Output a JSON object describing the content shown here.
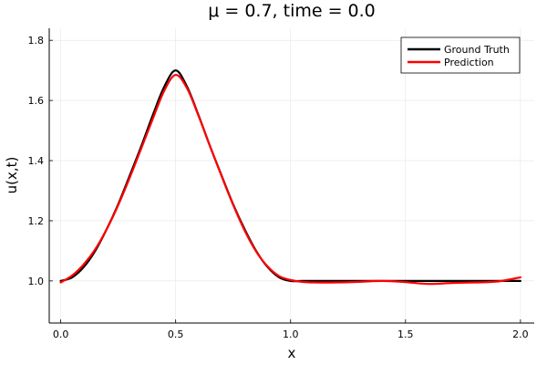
{
  "chart_data": {
    "type": "line",
    "title": "μ = 0.7, time = 0.0",
    "xlabel": "x",
    "ylabel": "u(x,t)",
    "xlim": [
      -0.05,
      2.06
    ],
    "ylim": [
      0.86,
      1.84
    ],
    "xticks": [
      0.0,
      0.5,
      1.0,
      1.5,
      2.0
    ],
    "xtick_labels": [
      "0.0",
      "0.5",
      "1.0",
      "1.5",
      "2.0"
    ],
    "yticks": [
      1.0,
      1.2,
      1.4,
      1.6,
      1.8
    ],
    "ytick_labels": [
      "1.0",
      "1.2",
      "1.4",
      "1.6",
      "1.8"
    ],
    "grid": true,
    "legend_position": "top-right",
    "series": [
      {
        "name": "Ground Truth",
        "color": "#000000",
        "x": [
          0.0,
          0.05,
          0.1,
          0.15,
          0.2,
          0.25,
          0.3,
          0.35,
          0.4,
          0.45,
          0.5,
          0.55,
          0.6,
          0.65,
          0.7,
          0.75,
          0.8,
          0.85,
          0.9,
          0.95,
          1.0,
          1.05,
          1.1,
          1.2,
          1.3,
          1.4,
          1.5,
          1.6,
          1.7,
          1.8,
          1.9,
          2.0
        ],
        "y": [
          1.0,
          1.012,
          1.046,
          1.1,
          1.172,
          1.255,
          1.35,
          1.447,
          1.55,
          1.645,
          1.7,
          1.645,
          1.55,
          1.447,
          1.35,
          1.255,
          1.172,
          1.1,
          1.046,
          1.012,
          1.0,
          1.0,
          1.0,
          1.0,
          1.0,
          1.0,
          1.0,
          1.0,
          1.0,
          1.0,
          1.0,
          1.0
        ]
      },
      {
        "name": "Prediction",
        "color": "#ff0000",
        "x": [
          0.0,
          0.05,
          0.1,
          0.15,
          0.2,
          0.25,
          0.3,
          0.35,
          0.4,
          0.45,
          0.5,
          0.55,
          0.6,
          0.65,
          0.7,
          0.75,
          0.8,
          0.85,
          0.9,
          0.95,
          1.0,
          1.05,
          1.1,
          1.2,
          1.3,
          1.4,
          1.5,
          1.6,
          1.7,
          1.8,
          1.9,
          2.0
        ],
        "y": [
          0.995,
          1.018,
          1.055,
          1.105,
          1.172,
          1.252,
          1.343,
          1.44,
          1.538,
          1.632,
          1.685,
          1.64,
          1.548,
          1.447,
          1.348,
          1.253,
          1.168,
          1.098,
          1.048,
          1.016,
          1.003,
          0.997,
          0.995,
          0.995,
          0.997,
          1.0,
          0.996,
          0.99,
          0.993,
          0.995,
          0.998,
          1.012
        ]
      }
    ]
  }
}
